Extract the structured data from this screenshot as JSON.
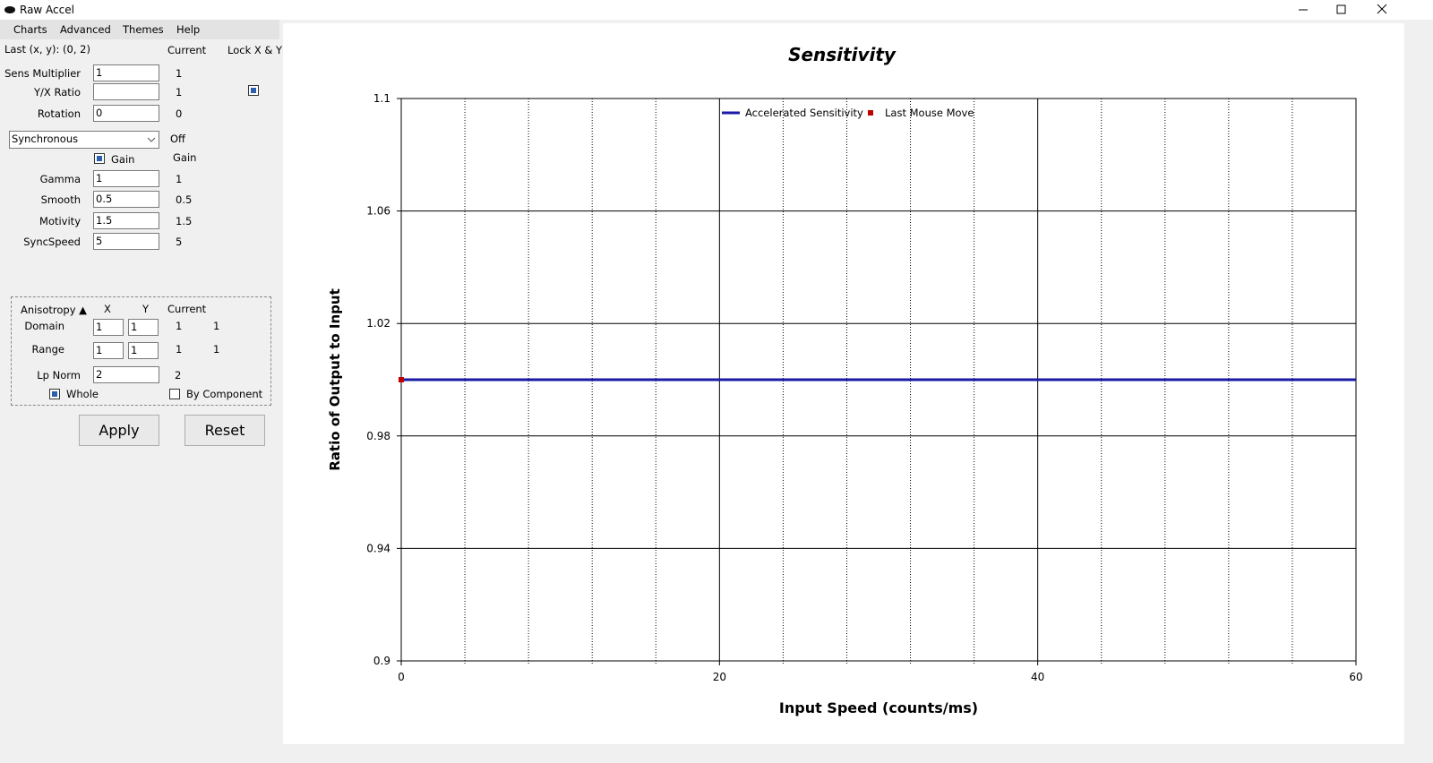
{
  "window": {
    "title": "Raw Accel"
  },
  "menu": [
    "Charts",
    "Advanced",
    "Themes",
    "Help"
  ],
  "panel": {
    "last_xy": "Last (x, y): (0, 2)",
    "current_header": "Current",
    "lock_label": "Lock X & Y",
    "lock_checked": true,
    "mode": "Synchronous",
    "mode_current": "Off",
    "gain_label": "Gain",
    "gain_checked": true,
    "gain_current": "Gain",
    "fields": [
      {
        "label": "Sens Multiplier",
        "input": "1",
        "current": "1"
      },
      {
        "label": "Y/X Ratio",
        "current": "1"
      },
      {
        "label": "Rotation",
        "input": "0",
        "current": "0"
      },
      {
        "label": "Gamma",
        "input": "1",
        "current": "1"
      },
      {
        "label": "Smooth",
        "input": "0.5",
        "current": "0.5"
      },
      {
        "label": "Motivity",
        "input": "1.5",
        "current": "1.5"
      },
      {
        "label": "SyncSpeed",
        "input": "5",
        "current": "5"
      }
    ],
    "anisotropy": {
      "title": "Anisotropy ▲",
      "x_header": "X",
      "y_header": "Y",
      "current_header": "Current",
      "rows": [
        {
          "label": "Domain",
          "x": "1",
          "y": "1",
          "current_x": "1",
          "current_y": "1"
        },
        {
          "label": "Range",
          "x": "1",
          "y": "1",
          "current_x": "1",
          "current_y": "1"
        }
      ],
      "lp_norm": {
        "label": "Lp Norm",
        "input": "2",
        "current": "2"
      },
      "whole": {
        "label": "Whole",
        "checked": true
      },
      "by_component": {
        "label": "By Component",
        "checked": false
      }
    },
    "buttons": [
      "Apply",
      "Reset"
    ]
  },
  "chart_data": {
    "type": "line",
    "title": "Sensitivity",
    "x_label": "Input Speed (counts/ms)",
    "y_label": "Ratio of Output to Input",
    "xlim": [
      0,
      60
    ],
    "xticks": [
      0,
      20,
      40,
      60
    ],
    "x_minor_ticks": [
      4,
      8,
      12,
      16,
      24,
      28,
      32,
      36,
      44,
      48,
      52,
      56
    ],
    "ylim": [
      0.9,
      1.1
    ],
    "yticks": [
      0.9,
      0.94,
      0.98,
      1.02,
      1.06,
      1.1
    ],
    "grid": true,
    "series": [
      {
        "name": "Accelerated Sensitivity",
        "color": "#1a1aa6",
        "style": "line",
        "x": [
          0,
          60
        ],
        "values": [
          1,
          1
        ]
      },
      {
        "name": "Last Mouse Move",
        "color": "#c00000",
        "style": "marker",
        "x": [
          0
        ],
        "values": [
          1
        ]
      }
    ]
  }
}
